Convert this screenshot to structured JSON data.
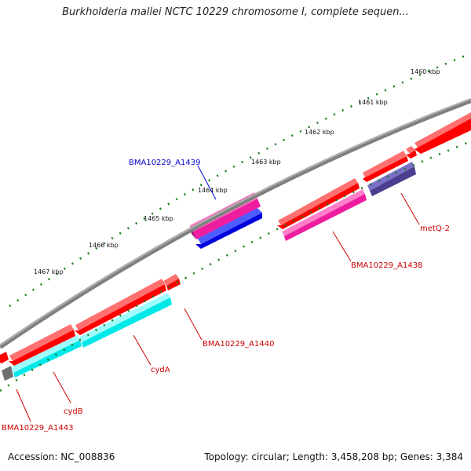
{
  "title": "Burkholderia mallei NCTC 10229 chromosome I, complete sequen...",
  "footer": {
    "accession": "Accession: NC_008836",
    "summary": "Topology: circular; Length: 3,458,208 bp; Genes: 3,384"
  },
  "kbp_ticks": [
    "1460 kbp",
    "1461 kbp",
    "1462 kbp",
    "1463 kbp",
    "1464 kbp",
    "1465 kbp",
    "1466 kbp",
    "1467 kbp"
  ],
  "gene_labels": {
    "a1439": "BMA10229_A1439",
    "a1438": "BMA10229_A1438",
    "metq": "metQ-2",
    "a1440": "BMA10229_A1440",
    "cyda": "cydA",
    "cydb": "cydB",
    "a1443": "BMA10229_A1443"
  },
  "colors": {
    "backbone": "#808080",
    "tick": "#1a7a1a",
    "gene_red": "#ff0000",
    "gene_pink": "#ee1da0",
    "gene_cyan": "#00e8e8",
    "gene_blue": "#0000dd",
    "gene_slate": "#4a3f8f",
    "gene_gray": "#707070",
    "label_red": "#cc0000",
    "label_blue": "#0000cc"
  }
}
